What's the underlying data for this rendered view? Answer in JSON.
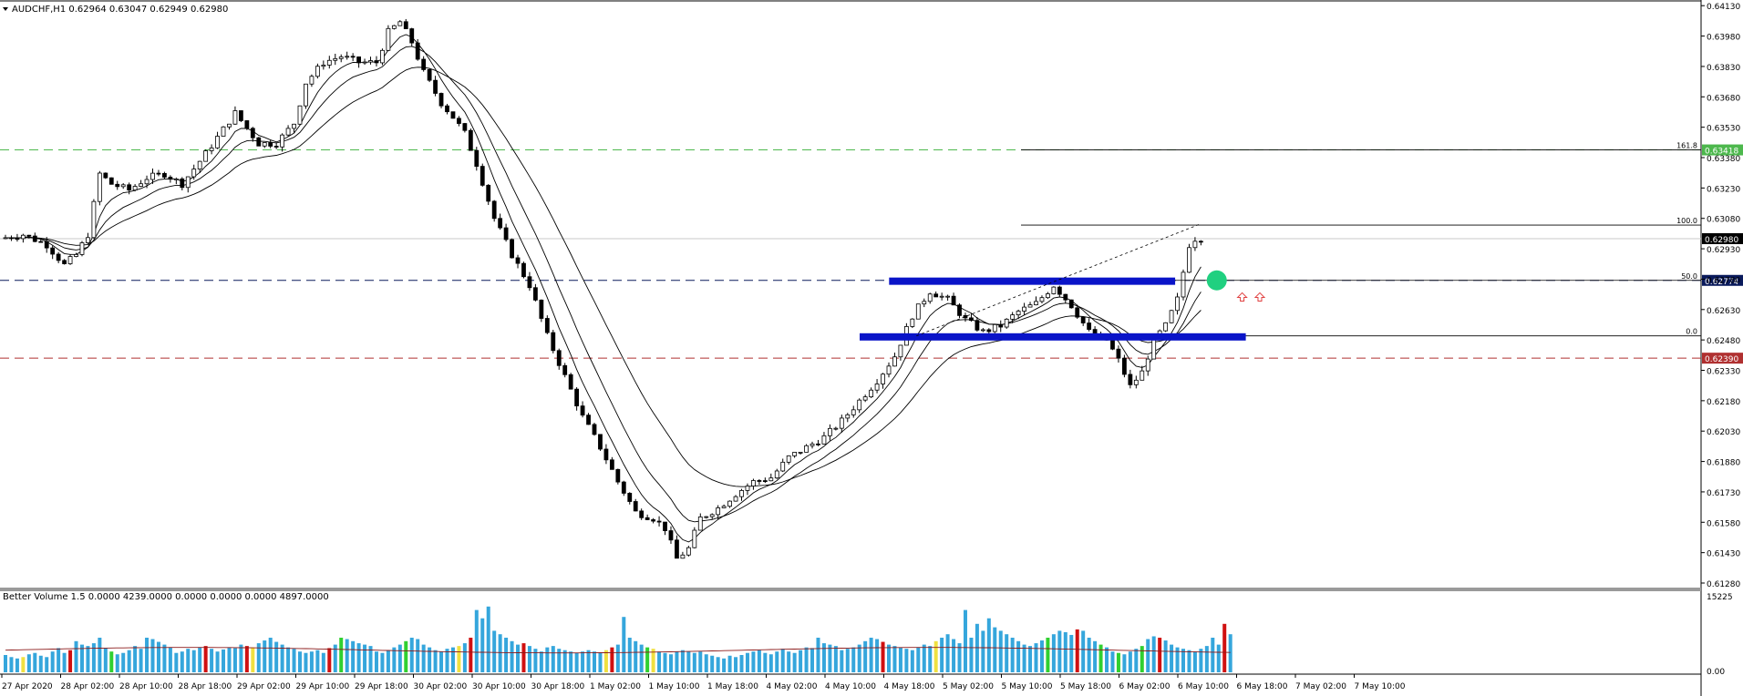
{
  "header": {
    "symbol_line": "AUDCHF,H1  0.62964 0.63047 0.62949 0.62980"
  },
  "volume_panel": {
    "title": "Better Volume 1.5 0.0000 4239.0000 0.0000 0.0000 0.0000 4897.0000",
    "top_label": "15225",
    "bottom_label": "0.00"
  },
  "colors": {
    "background": "#ffffff",
    "bull_candle": "#ffffff",
    "bear_candle": "#000000",
    "level_green": "#4db84d",
    "level_navy": "#0a1a5c",
    "level_red": "#b03030",
    "zone_blue": "#0a14c8",
    "target_dot": "#20d080",
    "arrow_red": "#e04040",
    "vol_blue": "#35a6dc",
    "vol_red": "#d01010",
    "vol_green": "#30d030",
    "vol_yellow": "#f0e040"
  },
  "chart_data": {
    "type": "candlestick",
    "symbol": "AUDCHF",
    "timeframe": "H1",
    "ylim": [
      0.6128,
      0.6414
    ],
    "y_ticks": [
      "0.64130",
      "0.63980",
      "0.63830",
      "0.63680",
      "0.63530",
      "0.63380",
      "0.63230",
      "0.63080",
      "0.62930",
      "0.62780",
      "0.62630",
      "0.62480",
      "0.62330",
      "0.62180",
      "0.62030",
      "0.61880",
      "0.61730",
      "0.61580",
      "0.61430",
      "0.61280"
    ],
    "x_labels": [
      "27 Apr 2020",
      "28 Apr 02:00",
      "28 Apr 10:00",
      "28 Apr 18:00",
      "29 Apr 02:00",
      "29 Apr 10:00",
      "29 Apr 18:00",
      "30 Apr 02:00",
      "30 Apr 10:00",
      "30 Apr 18:00",
      "1 May 02:00",
      "1 May 10:00",
      "1 May 18:00",
      "4 May 02:00",
      "4 May 10:00",
      "4 May 18:00",
      "5 May 02:00",
      "5 May 10:00",
      "5 May 18:00",
      "6 May 02:00",
      "6 May 10:00",
      "6 May 18:00",
      "7 May 02:00",
      "7 May 10:00"
    ],
    "price_path": [
      [
        0,
        0.6298
      ],
      [
        4,
        0.63
      ],
      [
        8,
        0.6295
      ],
      [
        11,
        0.6285
      ],
      [
        13,
        0.629
      ],
      [
        15,
        0.63
      ],
      [
        17,
        0.633
      ],
      [
        19,
        0.6325
      ],
      [
        22,
        0.6322
      ],
      [
        25,
        0.6328
      ],
      [
        28,
        0.633
      ],
      [
        31,
        0.6325
      ],
      [
        35,
        0.634
      ],
      [
        40,
        0.636
      ],
      [
        44,
        0.6345
      ],
      [
        47,
        0.6345
      ],
      [
        50,
        0.6355
      ],
      [
        52,
        0.6375
      ],
      [
        55,
        0.6385
      ],
      [
        58,
        0.6388
      ],
      [
        61,
        0.6385
      ],
      [
        64,
        0.6385
      ],
      [
        66,
        0.64
      ],
      [
        68,
        0.6405
      ],
      [
        70,
        0.6395
      ],
      [
        72,
        0.638
      ],
      [
        75,
        0.6365
      ],
      [
        77,
        0.6358
      ],
      [
        79,
        0.635
      ],
      [
        81,
        0.6335
      ],
      [
        84,
        0.6308
      ],
      [
        87,
        0.629
      ],
      [
        90,
        0.6275
      ],
      [
        93,
        0.625
      ],
      [
        96,
        0.623
      ],
      [
        99,
        0.621
      ],
      [
        102,
        0.6195
      ],
      [
        105,
        0.6178
      ],
      [
        108,
        0.6163
      ],
      [
        111,
        0.616
      ],
      [
        113,
        0.6155
      ],
      [
        115,
        0.614
      ],
      [
        117,
        0.6145
      ],
      [
        119,
        0.616
      ],
      [
        122,
        0.6165
      ],
      [
        125,
        0.6172
      ],
      [
        128,
        0.6178
      ],
      [
        131,
        0.618
      ],
      [
        134,
        0.619
      ],
      [
        137,
        0.6195
      ],
      [
        140,
        0.62
      ],
      [
        143,
        0.6208
      ],
      [
        146,
        0.6218
      ],
      [
        149,
        0.6228
      ],
      [
        152,
        0.624
      ],
      [
        155,
        0.626
      ],
      [
        158,
        0.6272
      ],
      [
        161,
        0.6268
      ],
      [
        164,
        0.6258
      ],
      [
        167,
        0.6252
      ],
      [
        170,
        0.6255
      ],
      [
        173,
        0.6262
      ],
      [
        176,
        0.6266
      ],
      [
        179,
        0.6275
      ],
      [
        182,
        0.6265
      ],
      [
        185,
        0.6252
      ],
      [
        188,
        0.6248
      ],
      [
        190,
        0.6238
      ],
      [
        192,
        0.6225
      ],
      [
        194,
        0.6232
      ],
      [
        196,
        0.6248
      ],
      [
        198,
        0.6255
      ],
      [
        200,
        0.6268
      ],
      [
        202,
        0.6295
      ],
      [
        203,
        0.6298
      ]
    ],
    "volumes": [
      0.25,
      0.22,
      0.2,
      0.22,
      0.26,
      0.28,
      0.24,
      0.22,
      0.3,
      0.35,
      0.28,
      0.32,
      0.45,
      0.4,
      0.38,
      0.42,
      0.5,
      0.35,
      0.3,
      0.26,
      0.28,
      0.32,
      0.38,
      0.34,
      0.5,
      0.48,
      0.44,
      0.4,
      0.36,
      0.28,
      0.3,
      0.34,
      0.32,
      0.36,
      0.38,
      0.34,
      0.3,
      0.33,
      0.36,
      0.35,
      0.4,
      0.38,
      0.36,
      0.42,
      0.46,
      0.5,
      0.44,
      0.4,
      0.36,
      0.34,
      0.3,
      0.28,
      0.3,
      0.32,
      0.28,
      0.35,
      0.4,
      0.5,
      0.48,
      0.45,
      0.42,
      0.4,
      0.38,
      0.3,
      0.28,
      0.32,
      0.36,
      0.4,
      0.45,
      0.5,
      0.48,
      0.4,
      0.36,
      0.32,
      0.3,
      0.34,
      0.36,
      0.38,
      0.42,
      0.5,
      0.9,
      0.78,
      0.95,
      0.6,
      0.55,
      0.5,
      0.45,
      0.4,
      0.42,
      0.38,
      0.34,
      0.3,
      0.36,
      0.38,
      0.34,
      0.32,
      0.3,
      0.28,
      0.3,
      0.32,
      0.3,
      0.28,
      0.32,
      0.36,
      0.4,
      0.8,
      0.5,
      0.45,
      0.4,
      0.36,
      0.34,
      0.3,
      0.28,
      0.26,
      0.3,
      0.32,
      0.3,
      0.28,
      0.3,
      0.26,
      0.24,
      0.22,
      0.2,
      0.24,
      0.22,
      0.25,
      0.28,
      0.3,
      0.32,
      0.28,
      0.26,
      0.3,
      0.34,
      0.3,
      0.28,
      0.32,
      0.36,
      0.35,
      0.5,
      0.42,
      0.4,
      0.38,
      0.32,
      0.34,
      0.36,
      0.4,
      0.45,
      0.5,
      0.48,
      0.44,
      0.4,
      0.38,
      0.36,
      0.34,
      0.32,
      0.36,
      0.4,
      0.38,
      0.45,
      0.5,
      0.55,
      0.48,
      0.42,
      0.9,
      0.5,
      0.7,
      0.6,
      0.78,
      0.65,
      0.6,
      0.55,
      0.5,
      0.45,
      0.4,
      0.38,
      0.42,
      0.46,
      0.5,
      0.55,
      0.6,
      0.58,
      0.54,
      0.62,
      0.6,
      0.5,
      0.45,
      0.4,
      0.36,
      0.3,
      0.28,
      0.26,
      0.3,
      0.34,
      0.38,
      0.48,
      0.52,
      0.5,
      0.46,
      0.4,
      0.36,
      0.34,
      0.32,
      0.3,
      0.34,
      0.38,
      0.5,
      0.4,
      0.7,
      0.55
    ],
    "ema_periods": [
      6,
      12,
      24
    ],
    "horizontal_levels": [
      {
        "price": 0.63418,
        "label": "0.63418",
        "style": "dashed",
        "color": "#4db84d"
      },
      {
        "price": 0.62774,
        "label": "0.62774",
        "style": "dashed",
        "color": "#0a1a5c"
      },
      {
        "price": 0.6239,
        "label": "0.62390",
        "style": "dashed",
        "color": "#b03030"
      },
      {
        "price": 0.6298,
        "label": "0.62980",
        "style": "solid",
        "color": "#c8c8c8"
      }
    ],
    "fibonacci": [
      {
        "level": "161.8",
        "price": 0.63418
      },
      {
        "level": "100.0",
        "price": 0.63047
      },
      {
        "level": "50.0",
        "price": 0.62774
      },
      {
        "level": "0.0",
        "price": 0.625
      }
    ],
    "zones": [
      {
        "price": 0.6277,
        "from_bar": 155,
        "to_bar": 198
      },
      {
        "price": 0.62495,
        "from_bar": 150,
        "to_bar": 210
      }
    ],
    "trendline": {
      "from": [
        155,
        0.625
      ],
      "to": [
        203,
        0.6305
      ]
    },
    "target_marker": {
      "bar": 206,
      "price": 0.62774
    },
    "arrows": [
      {
        "bar": 210,
        "price": 0.6269
      },
      {
        "bar": 213,
        "price": 0.6269
      }
    ]
  }
}
